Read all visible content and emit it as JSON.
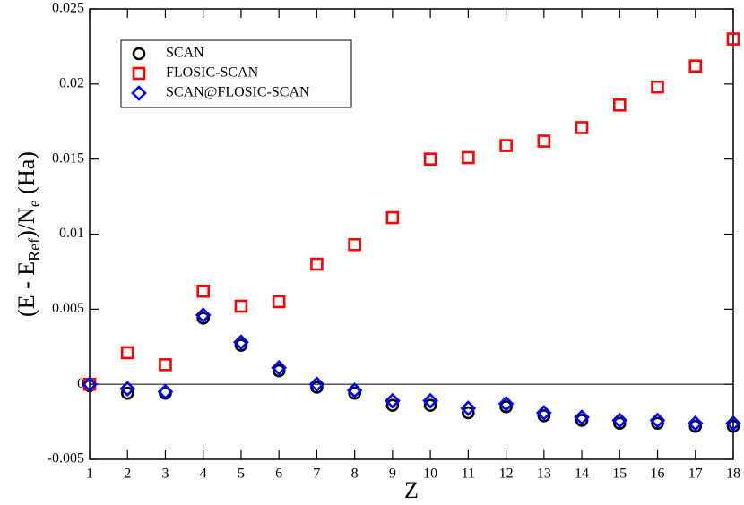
{
  "chart_data": {
    "type": "scatter",
    "xlabel": "Z",
    "ylabel": [
      "(E - E",
      "Ref",
      ")/N",
      "e",
      " (Ha)"
    ],
    "x": [
      1,
      2,
      3,
      4,
      5,
      6,
      7,
      8,
      9,
      10,
      11,
      12,
      13,
      14,
      15,
      16,
      17,
      18
    ],
    "xlim": [
      1,
      18
    ],
    "xticks": [
      1,
      2,
      3,
      4,
      5,
      6,
      7,
      8,
      9,
      10,
      11,
      12,
      13,
      14,
      15,
      16,
      17,
      18
    ],
    "ylim": [
      -0.005,
      0.025
    ],
    "yticks": [
      -0.005,
      0,
      0.005,
      0.01,
      0.015,
      0.02,
      0.025
    ],
    "zero_line": true,
    "legend": "upper left",
    "series": [
      {
        "name": "SCAN",
        "color": "#000000",
        "marker": "circle",
        "values": [
          -0.0001,
          -0.0006,
          -0.0006,
          0.0044,
          0.0026,
          0.0009,
          -0.0002,
          -0.0006,
          -0.0014,
          -0.0014,
          -0.0019,
          -0.0015,
          -0.0021,
          -0.0024,
          -0.0026,
          -0.0026,
          -0.0028,
          -0.0028
        ]
      },
      {
        "name": "FLOSIC-SCAN",
        "color": "#ff0000",
        "marker": "square",
        "values": [
          0.0,
          0.0021,
          0.0013,
          0.0062,
          0.0052,
          0.0055,
          0.008,
          0.0093,
          0.0111,
          0.015,
          0.0151,
          0.0159,
          0.0162,
          0.0171,
          0.0186,
          0.0198,
          0.0212,
          0.023
        ]
      },
      {
        "name": "SCAN@FLOSIC-SCAN",
        "color": "#0000ff",
        "marker": "diamond",
        "values": [
          0.0,
          -0.0003,
          -0.0005,
          0.0046,
          0.0028,
          0.0011,
          0.0,
          -0.0004,
          -0.0011,
          -0.0011,
          -0.0016,
          -0.0013,
          -0.0019,
          -0.0022,
          -0.0024,
          -0.0024,
          -0.0026,
          -0.0026
        ]
      }
    ]
  }
}
